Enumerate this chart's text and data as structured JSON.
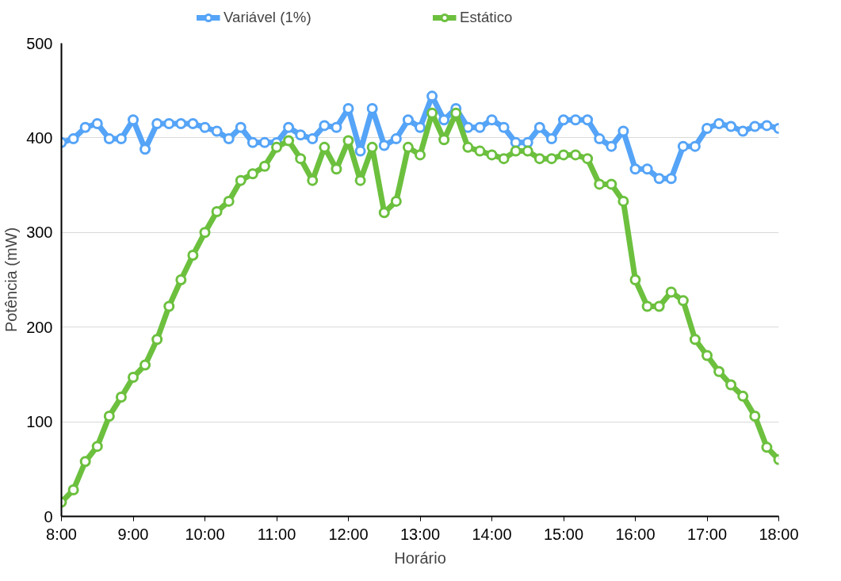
{
  "chart_data": {
    "type": "line",
    "xlabel": "Horário",
    "ylabel": "Potência (mW)",
    "x": [
      8,
      8.1667,
      8.3333,
      8.5,
      8.6667,
      8.8333,
      9,
      9.1667,
      9.3333,
      9.5,
      9.6667,
      9.8333,
      10,
      10.1667,
      10.3333,
      10.5,
      10.6667,
      10.8333,
      11,
      11.1667,
      11.3333,
      11.5,
      11.6667,
      11.8333,
      12,
      12.1667,
      12.3333,
      12.5,
      12.6667,
      12.8333,
      13,
      13.1667,
      13.3333,
      13.5,
      13.6667,
      13.8333,
      14,
      14.1667,
      14.3333,
      14.5,
      14.6667,
      14.8333,
      15,
      15.1667,
      15.3333,
      15.5,
      15.6667,
      15.8333,
      16,
      16.1667,
      16.3333,
      16.5,
      16.6667,
      16.8333,
      17,
      17.1667,
      17.3333,
      17.5,
      17.6667,
      17.8333,
      18
    ],
    "series": [
      {
        "name": "Variável (1%)",
        "color": "#55a4f7",
        "values": [
          395,
          399,
          411,
          415,
          399,
          399,
          419,
          388,
          415,
          415,
          415,
          415,
          411,
          407,
          399,
          411,
          395,
          395,
          395,
          411,
          403,
          399,
          413,
          411,
          431,
          386,
          431,
          392,
          399,
          419,
          411,
          444,
          419,
          431,
          411,
          411,
          419,
          411,
          395,
          395,
          411,
          399,
          419,
          419,
          419,
          399,
          391,
          407,
          367,
          367,
          357,
          357,
          391,
          391,
          410,
          415,
          412,
          407,
          412,
          413,
          410
        ]
      },
      {
        "name": "Estático",
        "color": "#6cc03e",
        "values": [
          15,
          28,
          58,
          74,
          106,
          126,
          147,
          160,
          187,
          222,
          250,
          276,
          300,
          322,
          333,
          355,
          362,
          370,
          390,
          397,
          378,
          355,
          390,
          367,
          397,
          355,
          390,
          321,
          333,
          390,
          382,
          426,
          398,
          426,
          390,
          386,
          382,
          378,
          386,
          386,
          378,
          378,
          382,
          382,
          378,
          351,
          351,
          333,
          250,
          222,
          222,
          237,
          228,
          187,
          170,
          153,
          139,
          127,
          106,
          73,
          60
        ]
      }
    ],
    "xlim": [
      8,
      18
    ],
    "xticks": [
      {
        "value": 8,
        "label": "8:00"
      },
      {
        "value": 9,
        "label": "9:00"
      },
      {
        "value": 10,
        "label": "10:00"
      },
      {
        "value": 11,
        "label": "11:00"
      },
      {
        "value": 12,
        "label": "12:00"
      },
      {
        "value": 13,
        "label": "13:00"
      },
      {
        "value": 14,
        "label": "14:00"
      },
      {
        "value": 15,
        "label": "15:00"
      },
      {
        "value": 16,
        "label": "16:00"
      },
      {
        "value": 17,
        "label": "17:00"
      },
      {
        "value": 18,
        "label": "18:00"
      }
    ],
    "ylim": [
      0,
      500
    ],
    "yticks": [
      0,
      100,
      200,
      300,
      400,
      500
    ],
    "grid": "y",
    "legend": "top",
    "marker": "circle",
    "line_style": "solid"
  }
}
